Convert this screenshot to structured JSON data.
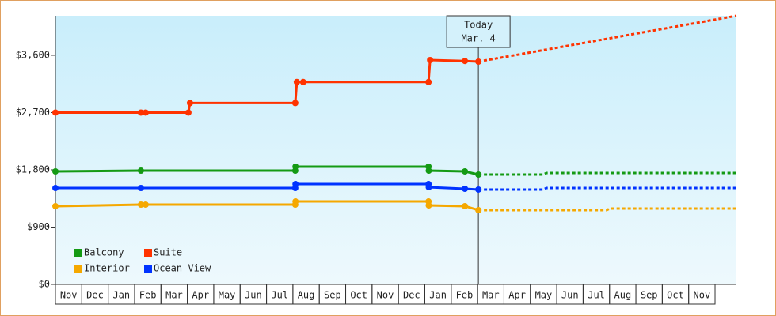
{
  "chart_data": {
    "type": "line",
    "categories": [
      "Nov",
      "Dec",
      "Jan",
      "Feb",
      "Mar",
      "Apr",
      "May",
      "Jun",
      "Jul",
      "Aug",
      "Sep",
      "Oct",
      "Nov",
      "Dec",
      "Jan",
      "Feb",
      "Mar",
      "Apr",
      "May",
      "Jun",
      "Jul",
      "Aug",
      "Sep",
      "Oct",
      "Nov"
    ],
    "xlim": [
      0,
      25.81
    ],
    "ylim": [
      0,
      4220
    ],
    "yticks": [
      {
        "value": 0,
        "label": "$0"
      },
      {
        "value": 900,
        "label": "$900"
      },
      {
        "value": 1800,
        "label": "$1,800"
      },
      {
        "value": 2700,
        "label": "$2,700"
      },
      {
        "value": 3600,
        "label": "$3,600"
      }
    ],
    "annotation": {
      "text": [
        "Today",
        "Mar. 4"
      ],
      "x": 16.03
    },
    "series": [
      {
        "name": "Balcony",
        "color": "#149a14",
        "x": [
          0,
          3.24,
          9.09,
          9.1,
          14.14,
          14.15,
          15.52,
          16.03
        ],
        "values": [
          1775,
          1787,
          1787,
          1850,
          1850,
          1787,
          1775,
          1725
        ],
        "forecast_x": [
          16.03,
          18.49,
          18.61,
          25.81
        ],
        "forecast_values": [
          1725,
          1725,
          1750,
          1750
        ]
      },
      {
        "name": "Suite",
        "color": "#ff3300",
        "x": [
          0,
          3.24,
          3.42,
          5.04,
          5.1,
          9.09,
          9.15,
          9.39,
          14.14,
          14.2,
          15.52,
          16.03
        ],
        "values": [
          2700,
          2700,
          2700,
          2700,
          2850,
          2850,
          3180,
          3180,
          3180,
          3525,
          3510,
          3500
        ],
        "forecast_x": [
          16.03,
          25.81
        ],
        "forecast_values": [
          3500,
          4220
        ]
      },
      {
        "name": "Interior",
        "color": "#f5a800",
        "x": [
          0,
          3.24,
          3.42,
          9.09,
          9.1,
          14.14,
          14.15,
          15.52,
          16.03
        ],
        "values": [
          1229,
          1253,
          1253,
          1253,
          1303,
          1303,
          1241,
          1229,
          1167
        ],
        "forecast_x": [
          16.03,
          20.89,
          21.01,
          25.81
        ],
        "forecast_values": [
          1167,
          1167,
          1191,
          1191
        ]
      },
      {
        "name": "Ocean View",
        "color": "#0033ff",
        "x": [
          0,
          3.24,
          9.09,
          9.1,
          14.14,
          14.15,
          15.52,
          16.03
        ],
        "values": [
          1514,
          1514,
          1514,
          1576,
          1576,
          1526,
          1502,
          1490
        ],
        "forecast_x": [
          16.03,
          18.49,
          18.61,
          25.81
        ],
        "forecast_values": [
          1490,
          1490,
          1514,
          1514
        ]
      }
    ]
  }
}
